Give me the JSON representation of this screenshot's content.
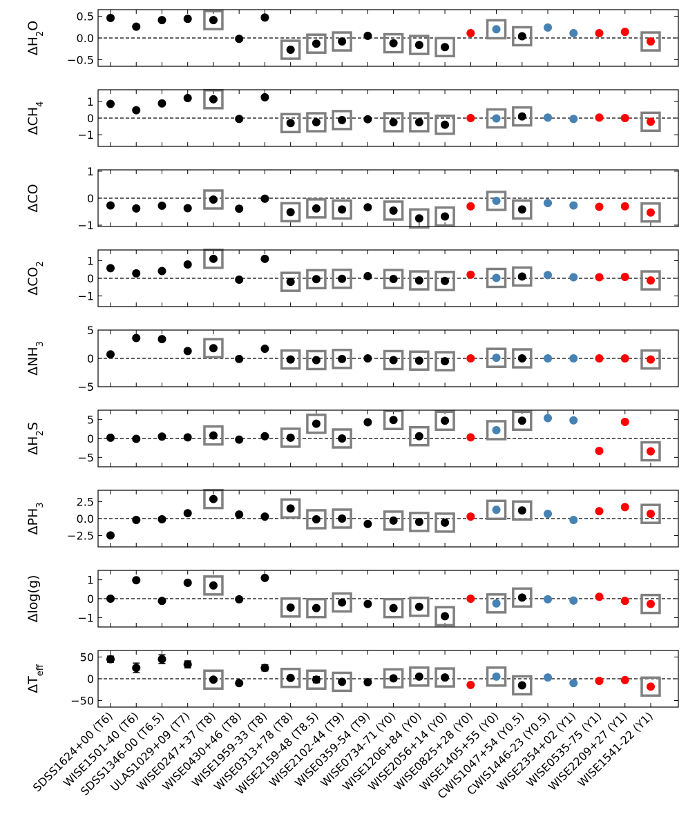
{
  "chart_data": {
    "type": "scatter",
    "objects": [
      "SDSS1624+00 (T6)",
      "WISE1501-40 (T6)",
      "SDSS1346-00 (T6.5)",
      "ULAS1029+09 (T7)",
      "WISE0247+37 (T8)",
      "WISE0430+46 (T8)",
      "WISE1959-33 (T8)",
      "WISE0313+78 (T8)",
      "WISE2159-48 (T8.5)",
      "WISE2102-44 (T9)",
      "WISE0359-54 (T9)",
      "WISE0734-71 (Y0)",
      "WISE1206+84 (Y0)",
      "WISE2056+14 (Y0)",
      "WISE0825+28 (Y0)",
      "WISE1405+55 (Y0)",
      "CWIS1047+54 (Y0.5)",
      "CWIS1446-23 (Y0.5)",
      "WISE2354+02 (Y1)",
      "WISE0535-75 (Y1)",
      "WISE2209+27 (Y1)",
      "WISE1541-22 (Y1)"
    ],
    "point_colors": [
      "#000000",
      "#000000",
      "#000000",
      "#000000",
      "#000000",
      "#000000",
      "#000000",
      "#000000",
      "#000000",
      "#000000",
      "#000000",
      "#000000",
      "#000000",
      "#000000",
      "#ff0000",
      "#4682b4",
      "#000000",
      "#4682b4",
      "#4682b4",
      "#ff0000",
      "#ff0000",
      "#ff0000"
    ],
    "highlighted": [
      4,
      7,
      8,
      9,
      11,
      12,
      13,
      15,
      16,
      21
    ],
    "panels": [
      {
        "name": "h2o",
        "ylabel_base": "ΔH",
        "ylabel_sub": "2",
        "ylabel_tail": "O",
        "ylim": [
          -0.65,
          0.65
        ],
        "yticks": [
          -0.5,
          0.0,
          0.5
        ],
        "ytick_labels": [
          "−0.5",
          "0.0",
          "0.5"
        ],
        "values": [
          0.46,
          0.26,
          0.41,
          0.44,
          0.41,
          -0.02,
          0.47,
          -0.27,
          -0.13,
          -0.08,
          0.05,
          -0.12,
          -0.16,
          -0.21,
          0.11,
          0.2,
          0.04,
          0.24,
          0.11,
          0.11,
          0.14,
          -0.08
        ]
      },
      {
        "name": "ch4",
        "ylabel_base": "ΔCH",
        "ylabel_sub": "4",
        "ylabel_tail": "",
        "ylim": [
          -1.7,
          1.7
        ],
        "yticks": [
          -1,
          0,
          1
        ],
        "ytick_labels": [
          "−1",
          "0",
          "1"
        ],
        "values": [
          0.85,
          0.47,
          0.88,
          1.2,
          1.13,
          -0.05,
          1.25,
          -0.3,
          -0.25,
          -0.12,
          -0.07,
          -0.25,
          -0.25,
          -0.4,
          0.0,
          -0.02,
          0.1,
          0.03,
          -0.05,
          0.03,
          0.0,
          -0.22
        ]
      },
      {
        "name": "co",
        "ylabel_base": "ΔCO",
        "ylabel_sub": "",
        "ylabel_tail": "",
        "ylim": [
          -1.05,
          1.05
        ],
        "yticks": [
          -1,
          0,
          1
        ],
        "ytick_labels": [
          "−1",
          "0",
          "1"
        ],
        "values": [
          -0.27,
          -0.38,
          -0.28,
          -0.37,
          -0.05,
          -0.39,
          -0.02,
          -0.52,
          -0.38,
          -0.42,
          -0.34,
          -0.46,
          -0.75,
          -0.68,
          -0.3,
          -0.1,
          -0.42,
          -0.18,
          -0.27,
          -0.32,
          -0.3,
          -0.53
        ]
      },
      {
        "name": "co2",
        "ylabel_base": "ΔCO",
        "ylabel_sub": "2",
        "ylabel_tail": "",
        "ylim": [
          -1.6,
          1.6
        ],
        "yticks": [
          -1,
          0,
          1
        ],
        "ytick_labels": [
          "−1",
          "0",
          "1"
        ],
        "values": [
          0.57,
          0.28,
          0.41,
          0.78,
          1.1,
          -0.08,
          1.1,
          -0.2,
          -0.05,
          -0.03,
          0.12,
          -0.04,
          -0.12,
          -0.15,
          0.2,
          0.02,
          0.1,
          0.18,
          0.06,
          0.06,
          0.08,
          -0.12
        ]
      },
      {
        "name": "nh3",
        "ylabel_base": "ΔNH",
        "ylabel_sub": "3",
        "ylabel_tail": "",
        "ylim": [
          -5,
          5
        ],
        "yticks": [
          -5,
          0,
          5
        ],
        "ytick_labels": [
          "−5",
          "0",
          "5"
        ],
        "values": [
          0.7,
          3.6,
          3.4,
          1.3,
          1.8,
          -0.1,
          1.7,
          -0.2,
          -0.3,
          -0.1,
          0.0,
          -0.3,
          -0.4,
          -0.5,
          0.0,
          0.1,
          0.0,
          0.0,
          0.0,
          0.0,
          0.0,
          -0.2
        ]
      },
      {
        "name": "h2s",
        "ylabel_base": "ΔH",
        "ylabel_sub": "2",
        "ylabel_tail": "S",
        "ylim": [
          -7.5,
          7.5
        ],
        "yticks": [
          -5,
          0,
          5
        ],
        "ytick_labels": [
          "−5",
          "0",
          "5"
        ],
        "values": [
          0.2,
          -0.1,
          0.5,
          0.3,
          0.8,
          -0.3,
          0.6,
          0.2,
          3.9,
          0.0,
          4.3,
          4.9,
          0.6,
          4.7,
          0.3,
          2.2,
          4.7,
          5.4,
          4.8,
          -3.3,
          4.4,
          -3.4
        ]
      },
      {
        "name": "ph3",
        "ylabel_base": "ΔPH",
        "ylabel_sub": "3",
        "ylabel_tail": "",
        "ylim": [
          -4.2,
          4.2
        ],
        "yticks": [
          -2.5,
          0.0,
          2.5
        ],
        "ytick_labels": [
          "−2.5",
          "0.0",
          "2.5"
        ],
        "values": [
          -2.5,
          -0.2,
          -0.1,
          0.8,
          2.9,
          0.6,
          0.3,
          1.5,
          -0.1,
          0.0,
          -0.8,
          -0.3,
          -0.5,
          -0.6,
          0.3,
          1.3,
          1.2,
          0.7,
          -0.2,
          1.1,
          1.7,
          0.7
        ]
      },
      {
        "name": "logg",
        "ylabel_base": "Δlog(g)",
        "ylabel_sub": "",
        "ylabel_tail": "",
        "ylim": [
          -1.5,
          1.5
        ],
        "yticks": [
          -1,
          0,
          1
        ],
        "ytick_labels": [
          "−1",
          "0",
          "1"
        ],
        "values": [
          0.0,
          0.98,
          -0.12,
          0.84,
          0.7,
          -0.03,
          1.1,
          -0.47,
          -0.5,
          -0.2,
          -0.28,
          -0.5,
          -0.43,
          -0.93,
          0.0,
          -0.25,
          0.06,
          -0.03,
          -0.1,
          0.1,
          -0.12,
          -0.28
        ]
      },
      {
        "name": "teff",
        "ylabel_base": "ΔT",
        "ylabel_sub": "eff",
        "ylabel_tail": "",
        "ylim": [
          -65,
          65
        ],
        "yticks": [
          -50,
          0,
          50
        ],
        "ytick_labels": [
          "−50",
          "0",
          "50"
        ],
        "values": [
          45,
          25,
          45,
          33,
          -2,
          -10,
          25,
          2,
          -2,
          -7,
          -8,
          1,
          5,
          3,
          -14,
          5,
          -15,
          3,
          -10,
          -5,
          -3,
          -18
        ],
        "errors": [
          7,
          11,
          10,
          8,
          0,
          0,
          7,
          0,
          7,
          0,
          0,
          0,
          0,
          0,
          0,
          0,
          0,
          0,
          0,
          0,
          0,
          0
        ]
      }
    ]
  }
}
